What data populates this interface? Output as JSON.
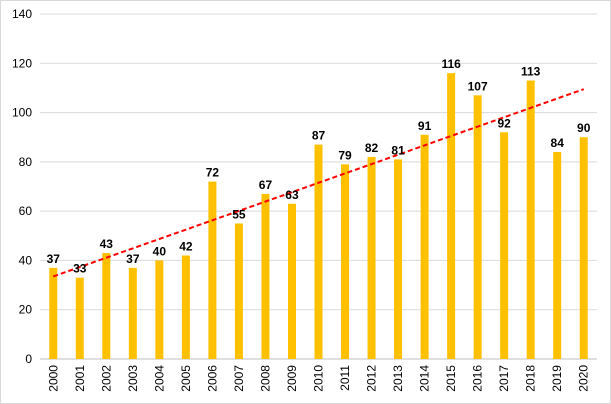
{
  "chart_data": {
    "type": "bar",
    "title": "",
    "xlabel": "",
    "ylabel": "",
    "ylim": [
      0,
      140
    ],
    "yticks": [
      "0",
      "20",
      "40",
      "60",
      "80",
      "100",
      "120",
      "140"
    ],
    "categories": [
      "2000",
      "2001",
      "2002",
      "2003",
      "2004",
      "2005",
      "2006",
      "2007",
      "2008",
      "2009",
      "2010",
      "2011",
      "2012",
      "2013",
      "2014",
      "2015",
      "2016",
      "2017",
      "2018",
      "2019",
      "2020"
    ],
    "values": [
      37,
      33,
      43,
      37,
      40,
      42,
      72,
      55,
      67,
      63,
      87,
      79,
      82,
      81,
      91,
      116,
      107,
      92,
      113,
      84,
      90
    ],
    "data_labels": [
      "37",
      "33",
      "43",
      "37",
      "40",
      "42",
      "72",
      "55",
      "67",
      "63",
      "87",
      "79",
      "82",
      "81",
      "91",
      "116",
      "107",
      "92",
      "113",
      "84",
      "90"
    ],
    "trendline": {
      "type": "linear",
      "style": "dashed",
      "start_value": 33.5,
      "end_value": 109.5
    },
    "gridlines": "horizontal",
    "legend": "none",
    "colors": {
      "bar": "#FFC000",
      "trend": "#FF0000",
      "grid": "#D9D9D9",
      "axis": "#BFBFBF"
    }
  }
}
